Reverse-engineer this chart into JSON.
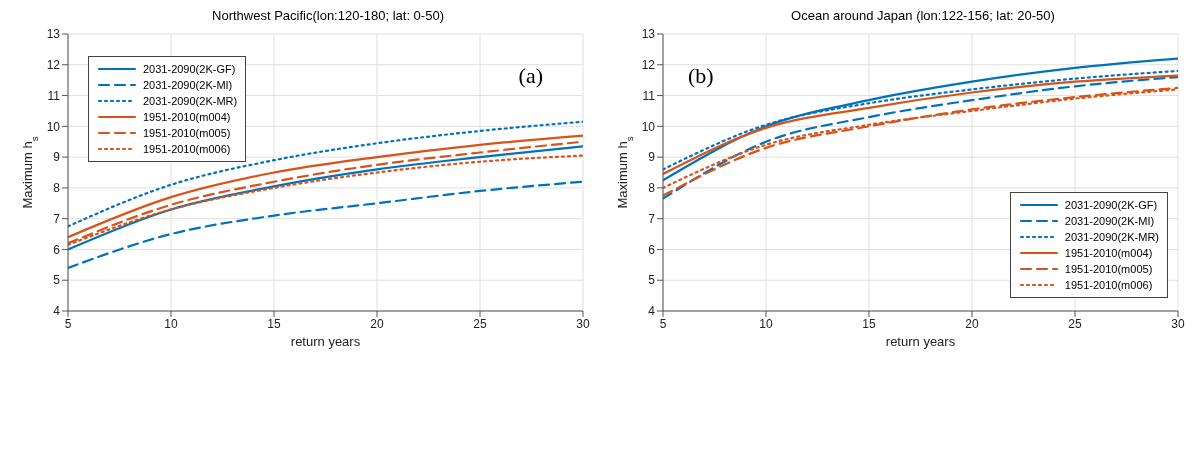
{
  "chart_data": [
    {
      "type": "line",
      "title": "Northwest Pacific(lon:120-180; lat: 0-50)",
      "xlabel": "return years",
      "ylabel": "Maximum h$_{s}$",
      "annotations": [
        "(a)"
      ],
      "x": [
        5,
        10,
        15,
        20,
        25,
        30
      ],
      "xlim": [
        5,
        30
      ],
      "xticks": [
        5,
        10,
        15,
        20,
        25,
        30
      ],
      "ylim": [
        4,
        13
      ],
      "yticks": [
        4,
        5,
        6,
        7,
        8,
        9,
        10,
        11,
        12,
        13
      ],
      "grid": true,
      "legend": "top left",
      "series": [
        {
          "name": "2031-2090(2K-GF)",
          "color": "#0072bd",
          "line_style": "solid",
          "values": [
            6.0,
            7.3,
            8.05,
            8.6,
            9.0,
            9.35
          ]
        },
        {
          "name": "2031-2090(2K-MI)",
          "color": "#0072bd",
          "line_style": "dashed",
          "values": [
            5.4,
            6.5,
            7.1,
            7.5,
            7.9,
            8.2
          ]
        },
        {
          "name": "2031-2090(2K-MR)",
          "color": "#0072bd",
          "line_style": "dotted",
          "values": [
            6.75,
            8.1,
            8.9,
            9.45,
            9.85,
            10.15
          ]
        },
        {
          "name": "1951-2010(m004)",
          "color": "#d95319",
          "line_style": "solid",
          "values": [
            6.4,
            7.7,
            8.5,
            9.0,
            9.4,
            9.7
          ]
        },
        {
          "name": "1951-2010(m005)",
          "color": "#d95319",
          "line_style": "dashed",
          "values": [
            6.2,
            7.45,
            8.2,
            8.75,
            9.15,
            9.5
          ]
        },
        {
          "name": "1951-2010(m006)",
          "color": "#d95319",
          "line_style": "dotted",
          "values": [
            6.15,
            7.3,
            8.0,
            8.5,
            8.85,
            9.05
          ]
        }
      ]
    },
    {
      "type": "line",
      "title": "Ocean around Japan (lon:122-156; lat: 20-50)",
      "xlabel": "return years",
      "ylabel": "Maximum h$_{s}$",
      "annotations": [
        "(b)"
      ],
      "x": [
        5,
        10,
        15,
        20,
        25,
        30
      ],
      "xlim": [
        5,
        30
      ],
      "xticks": [
        5,
        10,
        15,
        20,
        25,
        30
      ],
      "ylim": [
        4,
        13
      ],
      "yticks": [
        4,
        5,
        6,
        7,
        8,
        9,
        10,
        11,
        12,
        13
      ],
      "grid": true,
      "legend": "bottom right",
      "series": [
        {
          "name": "2031-2090(2K-GF)",
          "color": "#0072bd",
          "line_style": "solid",
          "values": [
            8.25,
            10.0,
            10.85,
            11.45,
            11.9,
            12.2
          ]
        },
        {
          "name": "2031-2090(2K-MI)",
          "color": "#0072bd",
          "line_style": "dashed",
          "values": [
            7.65,
            9.5,
            10.3,
            10.85,
            11.3,
            11.6
          ]
        },
        {
          "name": "2031-2090(2K-MR)",
          "color": "#0072bd",
          "line_style": "dotted",
          "values": [
            8.6,
            10.05,
            10.75,
            11.2,
            11.55,
            11.8
          ]
        },
        {
          "name": "1951-2010(m004)",
          "color": "#d95319",
          "line_style": "solid",
          "values": [
            8.45,
            9.95,
            10.6,
            11.1,
            11.45,
            11.65
          ]
        },
        {
          "name": "1951-2010(m005)",
          "color": "#d95319",
          "line_style": "dashed",
          "values": [
            7.75,
            9.3,
            10.0,
            10.55,
            10.95,
            11.25
          ]
        },
        {
          "name": "1951-2010(m006)",
          "color": "#d95319",
          "line_style": "dotted",
          "values": [
            8.0,
            9.4,
            10.05,
            10.5,
            10.9,
            11.2
          ]
        }
      ]
    }
  ]
}
